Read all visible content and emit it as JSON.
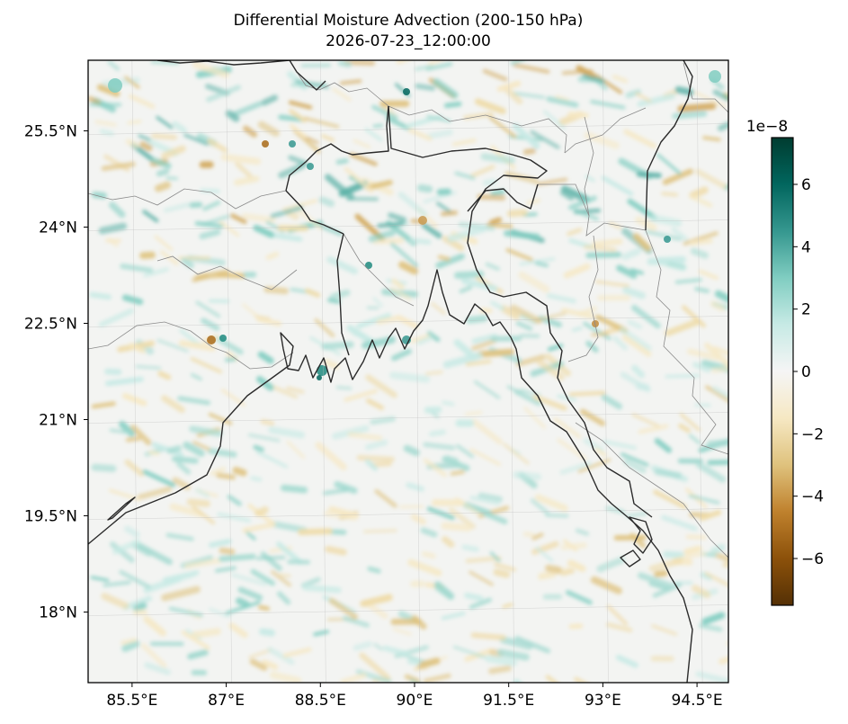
{
  "chart_data": {
    "type": "heatmap",
    "title": "Differential Moisture Advection (200-150 hPa)",
    "subtitle": "2026-07-23_12:00:00",
    "x_ticks": [
      "85.5°E",
      "87°E",
      "88.5°E",
      "90°E",
      "91.5°E",
      "93°E",
      "94.5°E"
    ],
    "y_ticks": [
      "25.5°N",
      "24°N",
      "22.5°N",
      "21°N",
      "19.5°N",
      "18°N"
    ],
    "x_tick_values": [
      85.5,
      87,
      88.5,
      90,
      91.5,
      93,
      94.5
    ],
    "y_tick_values": [
      25.5,
      24,
      22.5,
      21,
      19.5,
      18
    ],
    "xlim": [
      84.8,
      95.0
    ],
    "ylim": [
      16.9,
      26.6
    ],
    "colorbar": {
      "cmap": "BrBG",
      "multiplier": "1e−8",
      "range": [
        -7.5,
        7.5
      ],
      "ticks": [
        6,
        4,
        2,
        0,
        -2,
        -4,
        -6
      ],
      "tick_labels": [
        "6",
        "4",
        "2",
        "0",
        "−2",
        "−4",
        "−6"
      ]
    },
    "field_note": "Mostly near-zero values with small-scale streaky positive and negative anomalies (about ±6e-8), strongest over the Ganges delta and northern Bangladesh.",
    "grid": true
  }
}
